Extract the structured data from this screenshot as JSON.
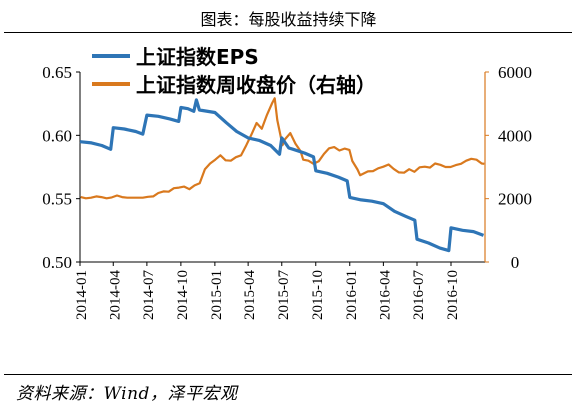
{
  "title": "图表：每股收益持续下降",
  "source": "资料来源：Wind，泽平宏观",
  "colors": {
    "eps": "#2E75B6",
    "index": "#D9791E",
    "axis": "#000000"
  },
  "chart_data": {
    "type": "line",
    "x_ticks": [
      "2014-01",
      "2014-04",
      "2014-07",
      "2014-10",
      "2015-01",
      "2015-04",
      "2015-07",
      "2015-10",
      "2016-01",
      "2016-04",
      "2016-07",
      "2016-10"
    ],
    "x_range": [
      "2014-01",
      "2016-12"
    ],
    "left_axis": {
      "ticks": [
        "0.50",
        "0.55",
        "0.60",
        "0.65"
      ],
      "range": [
        0.5,
        0.65
      ]
    },
    "right_axis": {
      "ticks": [
        "0",
        "2000",
        "4000",
        "6000"
      ],
      "range": [
        0,
        6000
      ]
    },
    "legend": [
      "上证指数EPS",
      "上证指数周收盘价（右轴）"
    ],
    "series": [
      {
        "name": "上证指数EPS",
        "axis": "left",
        "points": [
          [
            "2014-01-01",
            0.595
          ],
          [
            "2014-02-01",
            0.594
          ],
          [
            "2014-03-01",
            0.592
          ],
          [
            "2014-03-25",
            0.589
          ],
          [
            "2014-04-01",
            0.606
          ],
          [
            "2014-05-01",
            0.605
          ],
          [
            "2014-06-01",
            0.603
          ],
          [
            "2014-06-20",
            0.601
          ],
          [
            "2014-07-01",
            0.616
          ],
          [
            "2014-08-01",
            0.615
          ],
          [
            "2014-09-01",
            0.613
          ],
          [
            "2014-09-25",
            0.611
          ],
          [
            "2014-10-01",
            0.622
          ],
          [
            "2014-10-20",
            0.621
          ],
          [
            "2014-11-05",
            0.619
          ],
          [
            "2014-11-12",
            0.628
          ],
          [
            "2014-11-20",
            0.62
          ],
          [
            "2015-01-01",
            0.618
          ],
          [
            "2015-02-01",
            0.61
          ],
          [
            "2015-03-01",
            0.603
          ],
          [
            "2015-04-01",
            0.598
          ],
          [
            "2015-05-01",
            0.596
          ],
          [
            "2015-06-01",
            0.592
          ],
          [
            "2015-06-25",
            0.585
          ],
          [
            "2015-07-01",
            0.598
          ],
          [
            "2015-07-20",
            0.59
          ],
          [
            "2015-08-01",
            0.589
          ],
          [
            "2015-09-01",
            0.586
          ],
          [
            "2015-09-25",
            0.583
          ],
          [
            "2015-10-01",
            0.572
          ],
          [
            "2015-11-01",
            0.57
          ],
          [
            "2015-12-01",
            0.567
          ],
          [
            "2015-12-25",
            0.564
          ],
          [
            "2016-01-01",
            0.551
          ],
          [
            "2016-02-01",
            0.549
          ],
          [
            "2016-03-01",
            0.548
          ],
          [
            "2016-04-01",
            0.546
          ],
          [
            "2016-05-01",
            0.54
          ],
          [
            "2016-06-01",
            0.536
          ],
          [
            "2016-06-25",
            0.533
          ],
          [
            "2016-07-01",
            0.518
          ],
          [
            "2016-08-01",
            0.515
          ],
          [
            "2016-09-01",
            0.511
          ],
          [
            "2016-09-25",
            0.509
          ],
          [
            "2016-10-01",
            0.527
          ],
          [
            "2016-11-01",
            0.525
          ],
          [
            "2016-12-01",
            0.524
          ],
          [
            "2016-12-28",
            0.521
          ]
        ]
      },
      {
        "name": "上证指数周收盘价（右轴）",
        "axis": "right",
        "points": [
          [
            "2014-01-03",
            2050
          ],
          [
            "2014-01-17",
            2010
          ],
          [
            "2014-01-31",
            2030
          ],
          [
            "2014-02-14",
            2070
          ],
          [
            "2014-02-28",
            2050
          ],
          [
            "2014-03-14",
            2010
          ],
          [
            "2014-03-28",
            2040
          ],
          [
            "2014-04-11",
            2100
          ],
          [
            "2014-04-25",
            2050
          ],
          [
            "2014-05-09",
            2030
          ],
          [
            "2014-05-23",
            2030
          ],
          [
            "2014-06-06",
            2030
          ],
          [
            "2014-06-20",
            2030
          ],
          [
            "2014-07-04",
            2060
          ],
          [
            "2014-07-18",
            2070
          ],
          [
            "2014-08-01",
            2180
          ],
          [
            "2014-08-15",
            2230
          ],
          [
            "2014-08-29",
            2220
          ],
          [
            "2014-09-12",
            2330
          ],
          [
            "2014-09-26",
            2350
          ],
          [
            "2014-10-10",
            2380
          ],
          [
            "2014-10-24",
            2300
          ],
          [
            "2014-11-07",
            2420
          ],
          [
            "2014-11-21",
            2490
          ],
          [
            "2014-12-05",
            2930
          ],
          [
            "2014-12-19",
            3110
          ],
          [
            "2015-01-02",
            3230
          ],
          [
            "2015-01-16",
            3370
          ],
          [
            "2015-01-30",
            3210
          ],
          [
            "2015-02-13",
            3200
          ],
          [
            "2015-02-27",
            3310
          ],
          [
            "2015-03-13",
            3370
          ],
          [
            "2015-03-27",
            3690
          ],
          [
            "2015-04-10",
            4030
          ],
          [
            "2015-04-24",
            4390
          ],
          [
            "2015-05-08",
            4210
          ],
          [
            "2015-05-22",
            4650
          ],
          [
            "2015-06-05",
            5020
          ],
          [
            "2015-06-12",
            5170
          ],
          [
            "2015-06-19",
            4480
          ],
          [
            "2015-07-03",
            3690
          ],
          [
            "2015-07-10",
            3880
          ],
          [
            "2015-07-24",
            4070
          ],
          [
            "2015-08-07",
            3740
          ],
          [
            "2015-08-21",
            3500
          ],
          [
            "2015-08-28",
            3230
          ],
          [
            "2015-09-11",
            3200
          ],
          [
            "2015-09-25",
            3100
          ],
          [
            "2015-10-09",
            3180
          ],
          [
            "2015-10-23",
            3410
          ],
          [
            "2015-11-06",
            3590
          ],
          [
            "2015-11-20",
            3630
          ],
          [
            "2015-12-04",
            3520
          ],
          [
            "2015-12-18",
            3580
          ],
          [
            "2015-12-31",
            3540
          ],
          [
            "2016-01-08",
            3190
          ],
          [
            "2016-01-22",
            2920
          ],
          [
            "2016-01-29",
            2740
          ],
          [
            "2016-02-19",
            2860
          ],
          [
            "2016-03-04",
            2870
          ],
          [
            "2016-03-18",
            2960
          ],
          [
            "2016-04-01",
            3010
          ],
          [
            "2016-04-15",
            3080
          ],
          [
            "2016-04-29",
            2940
          ],
          [
            "2016-05-13",
            2830
          ],
          [
            "2016-05-27",
            2820
          ],
          [
            "2016-06-10",
            2930
          ],
          [
            "2016-06-24",
            2850
          ],
          [
            "2016-07-08",
            2990
          ],
          [
            "2016-07-22",
            3010
          ],
          [
            "2016-08-05",
            2980
          ],
          [
            "2016-08-19",
            3110
          ],
          [
            "2016-09-02",
            3070
          ],
          [
            "2016-09-16",
            3000
          ],
          [
            "2016-09-30",
            3000
          ],
          [
            "2016-10-14",
            3060
          ],
          [
            "2016-10-28",
            3100
          ],
          [
            "2016-11-11",
            3200
          ],
          [
            "2016-11-25",
            3260
          ],
          [
            "2016-12-09",
            3230
          ],
          [
            "2016-12-23",
            3110
          ],
          [
            "2016-12-30",
            3100
          ]
        ]
      }
    ]
  }
}
